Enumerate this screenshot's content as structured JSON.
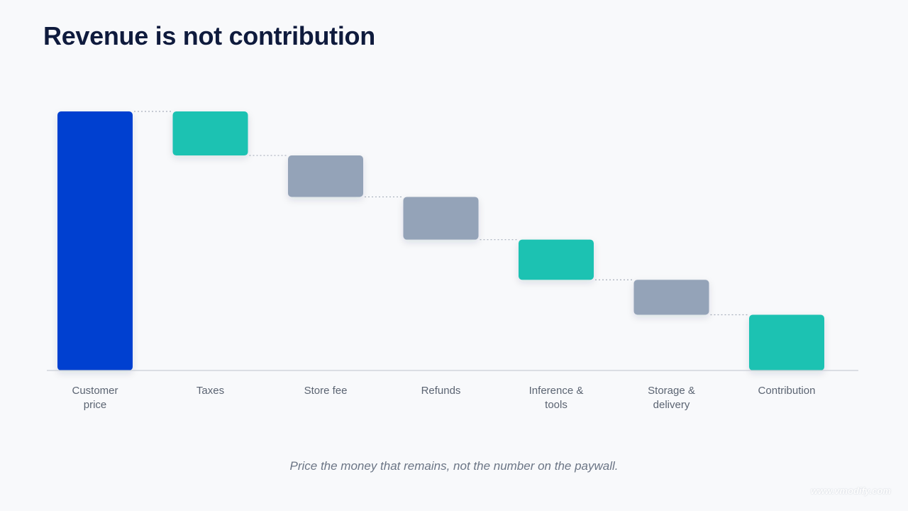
{
  "slide": {
    "title": "Revenue is not contribution",
    "footnote": "Price the money that remains, not the number on the paywall.",
    "watermark": "www.vmodify.com"
  },
  "chart_data": {
    "type": "bar",
    "subtype": "waterfall",
    "title": "Revenue is not contribution",
    "categories": [
      [
        "Customer",
        "price"
      ],
      [
        "Taxes"
      ],
      [
        "Store fee"
      ],
      [
        "Refunds"
      ],
      [
        "Inference &",
        "tools"
      ],
      [
        "Storage &",
        "delivery"
      ],
      [
        "Contribution"
      ]
    ],
    "units": "percent of customer price",
    "bars": [
      {
        "kind": "total",
        "start": 0,
        "end": 100,
        "color": "#0341d0"
      },
      {
        "kind": "step",
        "start": 100,
        "end": 83,
        "color": "#1cc2b2"
      },
      {
        "kind": "step",
        "start": 83,
        "end": 67,
        "color": "#94a3b8"
      },
      {
        "kind": "step",
        "start": 67,
        "end": 50.5,
        "color": "#94a3b8"
      },
      {
        "kind": "step",
        "start": 50.5,
        "end": 35,
        "color": "#1cc2b2"
      },
      {
        "kind": "step",
        "start": 35,
        "end": 21.5,
        "color": "#94a3b8"
      },
      {
        "kind": "total",
        "start": 0,
        "end": 21.5,
        "color": "#1cc2b2"
      }
    ],
    "ylim": [
      0,
      100
    ],
    "grid": false,
    "legend": "none",
    "connectors": "dotted"
  },
  "colors": {
    "title": "#0f1b3d",
    "axis": "#c9ced6",
    "connector": "#a7afbb",
    "label": "#5b6472"
  }
}
